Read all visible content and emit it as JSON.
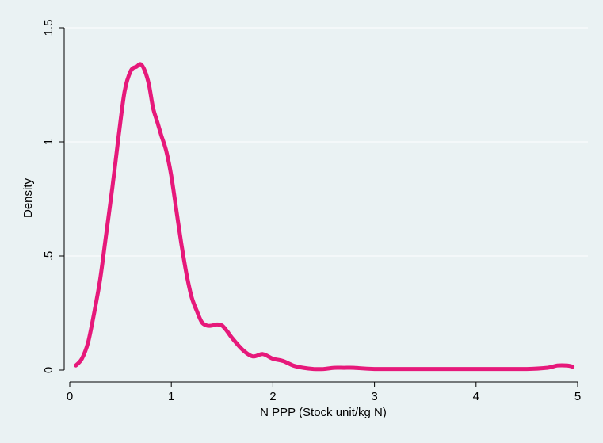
{
  "chart_data": {
    "type": "line",
    "title": "",
    "xlabel": "N PPP (Stock unit/kg N)",
    "ylabel": "Density",
    "xlim": [
      0,
      5
    ],
    "ylim": [
      0,
      1.5
    ],
    "x_ticks": [
      0,
      1,
      2,
      3,
      4,
      5
    ],
    "x_tick_labels": [
      "0",
      "1",
      "2",
      "3",
      "4",
      "5"
    ],
    "y_ticks": [
      0,
      0.5,
      1,
      1.5
    ],
    "y_tick_labels": [
      "0",
      ".5",
      "1",
      "1.5"
    ],
    "grid": "horizontal",
    "legend": "none",
    "series": [
      {
        "color": "#e6197a",
        "x": [
          0.06,
          0.12,
          0.18,
          0.24,
          0.3,
          0.36,
          0.42,
          0.48,
          0.54,
          0.6,
          0.66,
          0.7,
          0.74,
          0.78,
          0.82,
          0.86,
          0.9,
          0.95,
          1.0,
          1.05,
          1.1,
          1.15,
          1.2,
          1.25,
          1.3,
          1.35,
          1.4,
          1.45,
          1.5,
          1.55,
          1.6,
          1.7,
          1.8,
          1.9,
          2.0,
          2.1,
          2.2,
          2.3,
          2.4,
          2.5,
          2.6,
          2.7,
          2.8,
          3.0,
          3.5,
          4.0,
          4.5,
          4.7,
          4.8,
          4.9,
          4.95
        ],
        "y": [
          0.02,
          0.05,
          0.12,
          0.25,
          0.4,
          0.6,
          0.8,
          1.02,
          1.22,
          1.31,
          1.33,
          1.34,
          1.31,
          1.25,
          1.15,
          1.09,
          1.03,
          0.96,
          0.85,
          0.7,
          0.55,
          0.42,
          0.32,
          0.26,
          0.21,
          0.195,
          0.195,
          0.2,
          0.195,
          0.17,
          0.14,
          0.09,
          0.06,
          0.07,
          0.05,
          0.04,
          0.02,
          0.01,
          0.005,
          0.005,
          0.01,
          0.01,
          0.01,
          0.005,
          0.005,
          0.005,
          0.005,
          0.01,
          0.02,
          0.02,
          0.015
        ]
      }
    ]
  }
}
